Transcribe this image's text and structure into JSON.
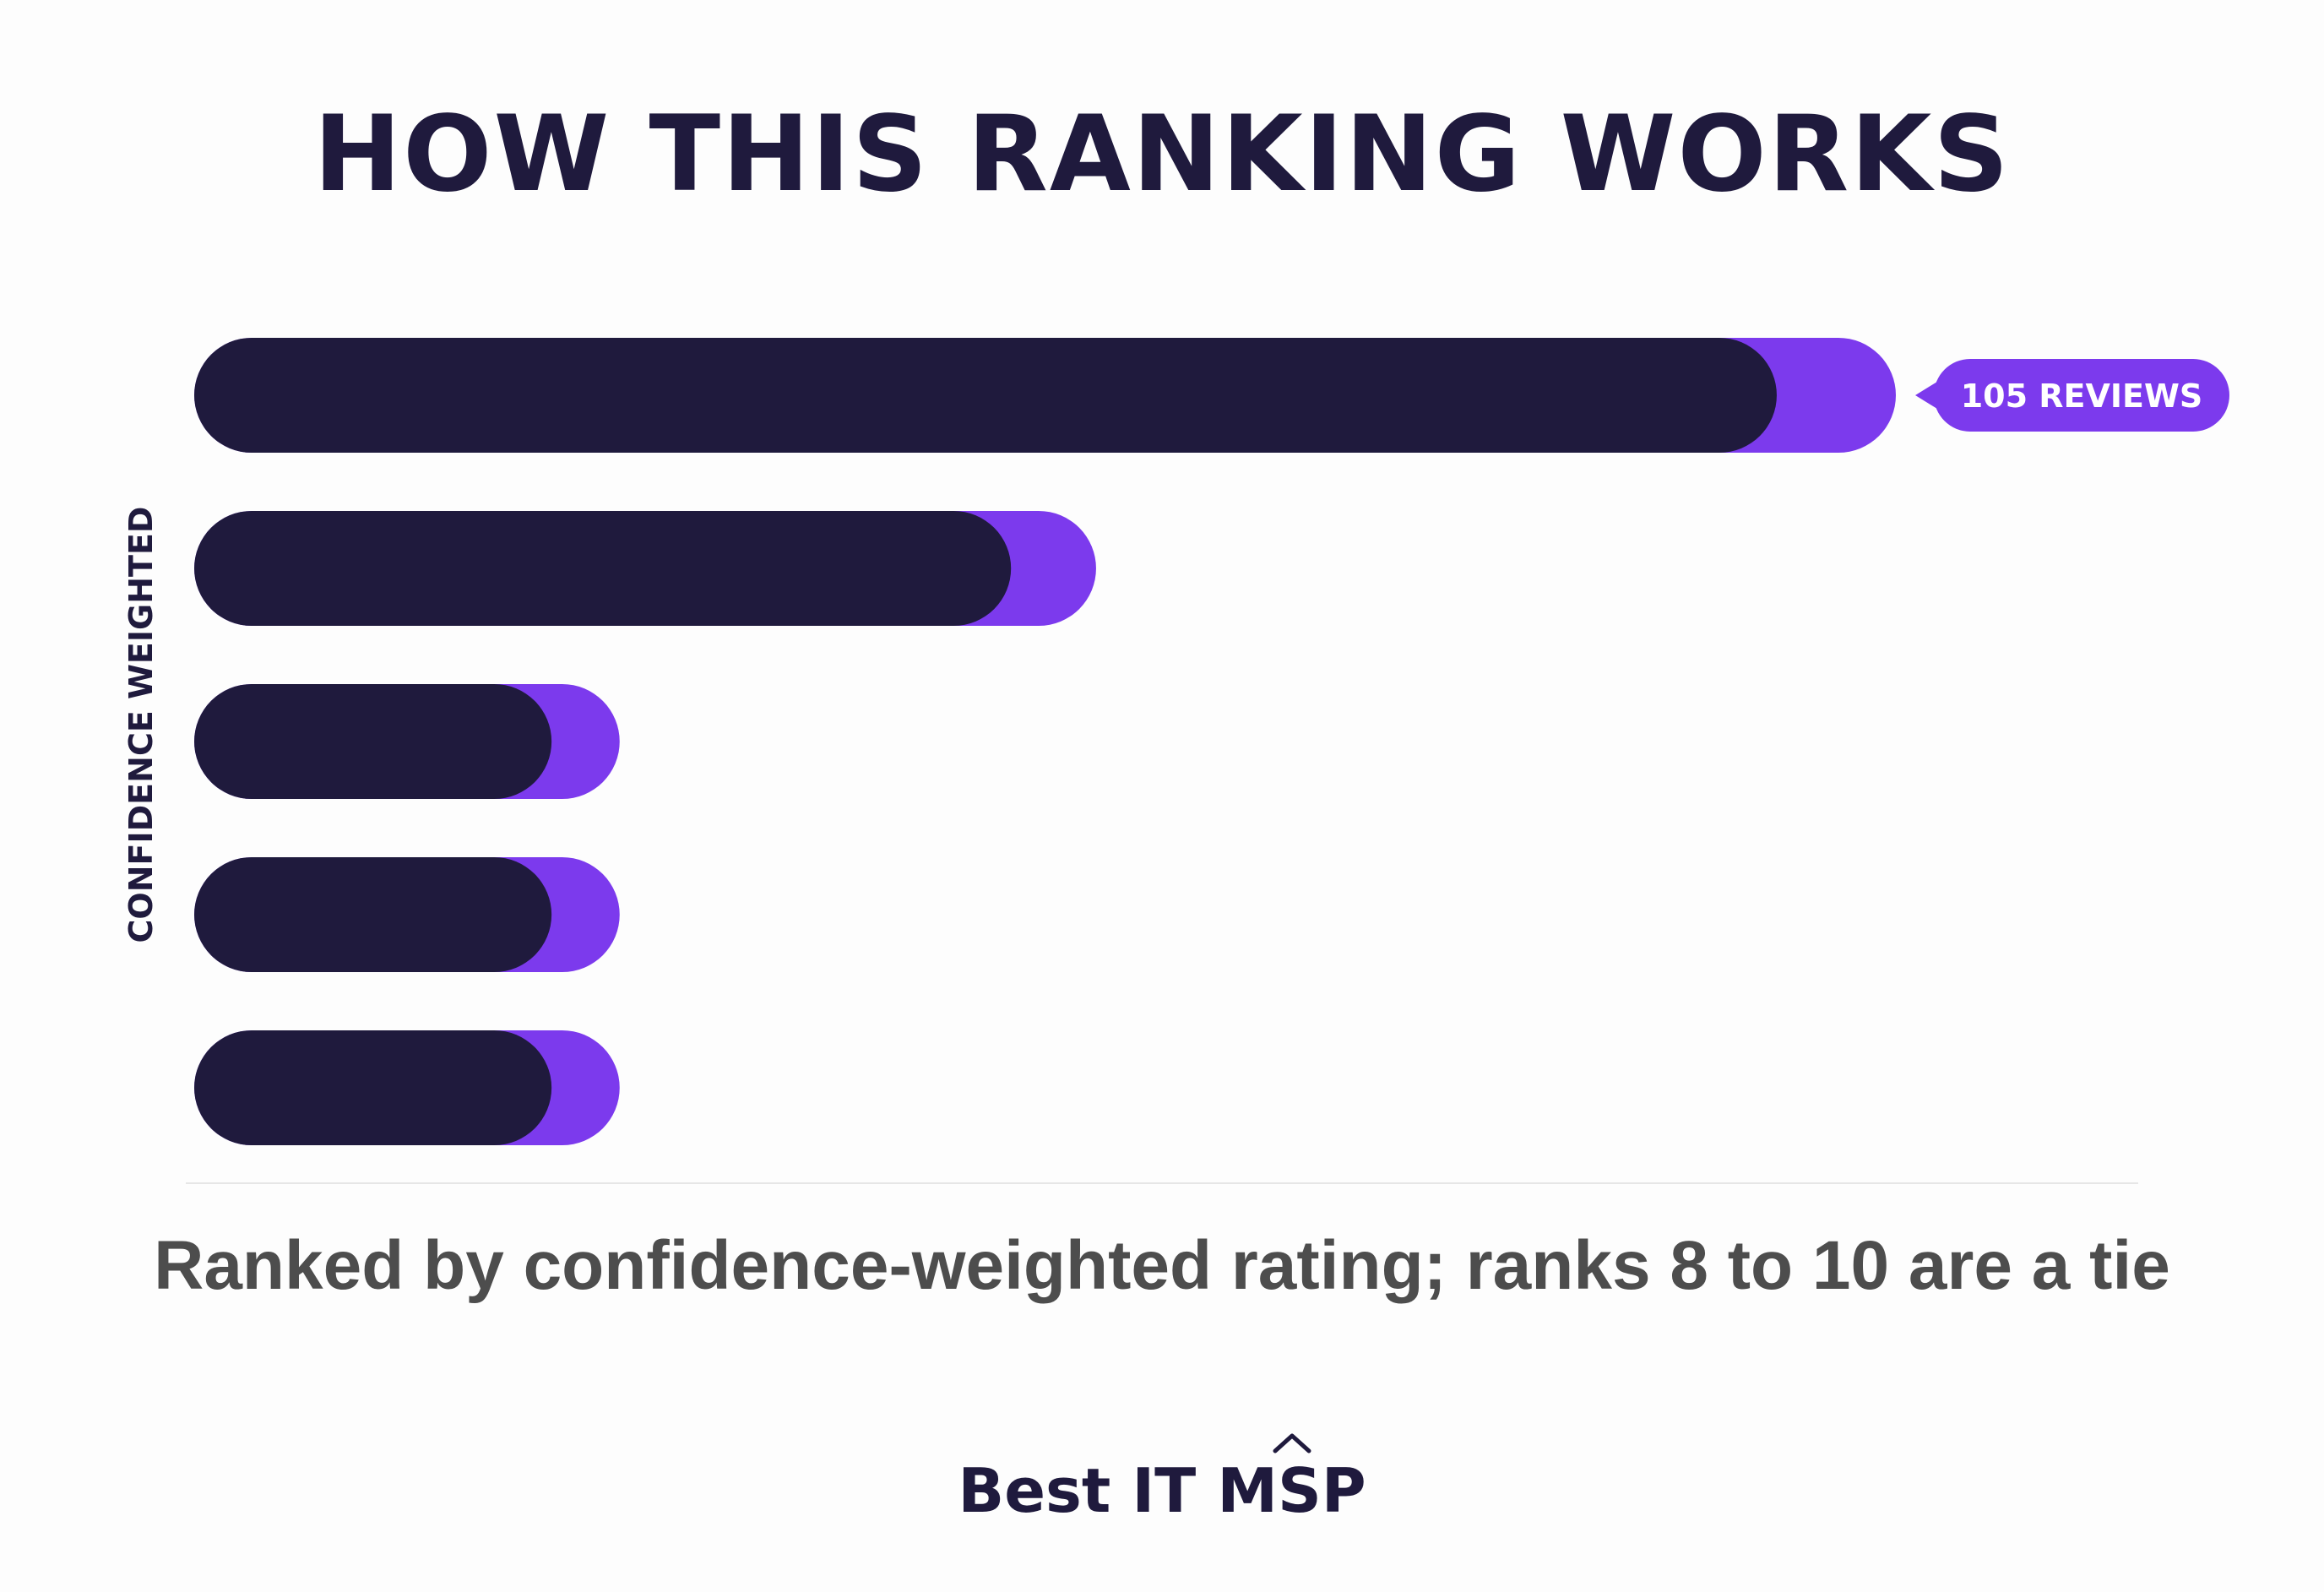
{
  "title": "HOW THIS RANKING WORKS",
  "caption": "Ranked by confidence-weighted rating; ranks 8 to 10 are a tie",
  "brand": {
    "text_main": "Best IT ",
    "text_accent": "MSP",
    "icon": "caret-up-icon"
  },
  "colors": {
    "bar_primary": "#1f1a3d",
    "bar_accent": "#7c3aed",
    "title": "#1f1a3d",
    "caption": "#4d4d4d"
  },
  "chart_data": {
    "type": "bar",
    "orientation": "horizontal",
    "ylabel": "CONFIDENCE WEIGHTED",
    "xlabel": "",
    "title": "",
    "xlim": [
      0,
      100
    ],
    "series": [
      {
        "values": [
          93,
          48,
          21,
          21,
          21
        ]
      },
      {
        "values": [
          100,
          53,
          25,
          25,
          25
        ]
      }
    ],
    "annotations": [
      {
        "bar_index": 0,
        "text": "105 REVIEWS"
      }
    ],
    "grid": false
  }
}
